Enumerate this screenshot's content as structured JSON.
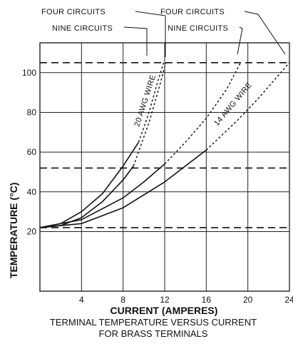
{
  "chart_data": {
    "type": "line",
    "xlabel": "CURRENT (AMPERES)",
    "ylabel": "TEMPERATURE (°C)",
    "caption_lines": [
      "TERMINAL TEMPERATURE VERSUS CURRENT",
      "FOR BRASS TERMINALS"
    ],
    "xlim": [
      0,
      24
    ],
    "ylim": [
      -10,
      115
    ],
    "x_ticks": [
      4,
      8,
      12,
      16,
      20,
      24
    ],
    "y_ticks": [
      20,
      40,
      60,
      80,
      100
    ],
    "grid": true,
    "reference_lines": [
      {
        "y": 105
      },
      {
        "y": 52
      },
      {
        "y": 22
      }
    ],
    "series": [
      {
        "group": "20 AWG WIRE",
        "label_top": "NINE CIRCUITS",
        "solid": [
          [
            0,
            22
          ],
          [
            2,
            24
          ],
          [
            4,
            30
          ],
          [
            6,
            39
          ],
          [
            8,
            53
          ],
          [
            9.5,
            65
          ]
        ],
        "dashed": [
          [
            9.5,
            65
          ],
          [
            10.5,
            80
          ],
          [
            11.3,
            95
          ],
          [
            11.9,
            105
          ]
        ]
      },
      {
        "group": "20 AWG WIRE",
        "label_top": "FOUR CIRCUITS",
        "solid": [
          [
            0,
            22
          ],
          [
            2,
            23
          ],
          [
            4,
            27
          ],
          [
            6,
            35
          ],
          [
            8,
            46
          ],
          [
            9,
            53
          ]
        ],
        "dashed": [
          [
            9,
            53
          ],
          [
            10.5,
            75
          ],
          [
            11.5,
            93
          ],
          [
            12.1,
            105
          ]
        ]
      },
      {
        "group": "14 AWG WIRE",
        "label_top": "NINE CIRCUITS",
        "solid": [
          [
            0,
            22
          ],
          [
            4,
            26
          ],
          [
            8,
            37
          ],
          [
            10,
            45
          ],
          [
            12,
            54
          ]
        ],
        "dashed": [
          [
            12,
            54
          ],
          [
            14,
            65
          ],
          [
            16,
            77
          ],
          [
            18,
            92
          ],
          [
            19.3,
            105
          ]
        ]
      },
      {
        "group": "14 AWG WIRE",
        "label_top": "FOUR CIRCUITS",
        "solid": [
          [
            0,
            22
          ],
          [
            4,
            24
          ],
          [
            8,
            32
          ],
          [
            12,
            45
          ],
          [
            16,
            61
          ]
        ],
        "dashed": [
          [
            16,
            61
          ],
          [
            19,
            76
          ],
          [
            21,
            87
          ],
          [
            23,
            99
          ],
          [
            24,
            105
          ]
        ]
      }
    ],
    "annotations": {
      "left_four_circuits": "FOUR CIRCUITS",
      "left_nine_circuits": "NINE CIRCUITS",
      "right_four_circuits": "FOUR CIRCUITS",
      "right_nine_circuits": "NINE CIRCUITS",
      "wire_20": "20 AWG WIRE",
      "wire_14": "14 AWG WIRE"
    }
  }
}
